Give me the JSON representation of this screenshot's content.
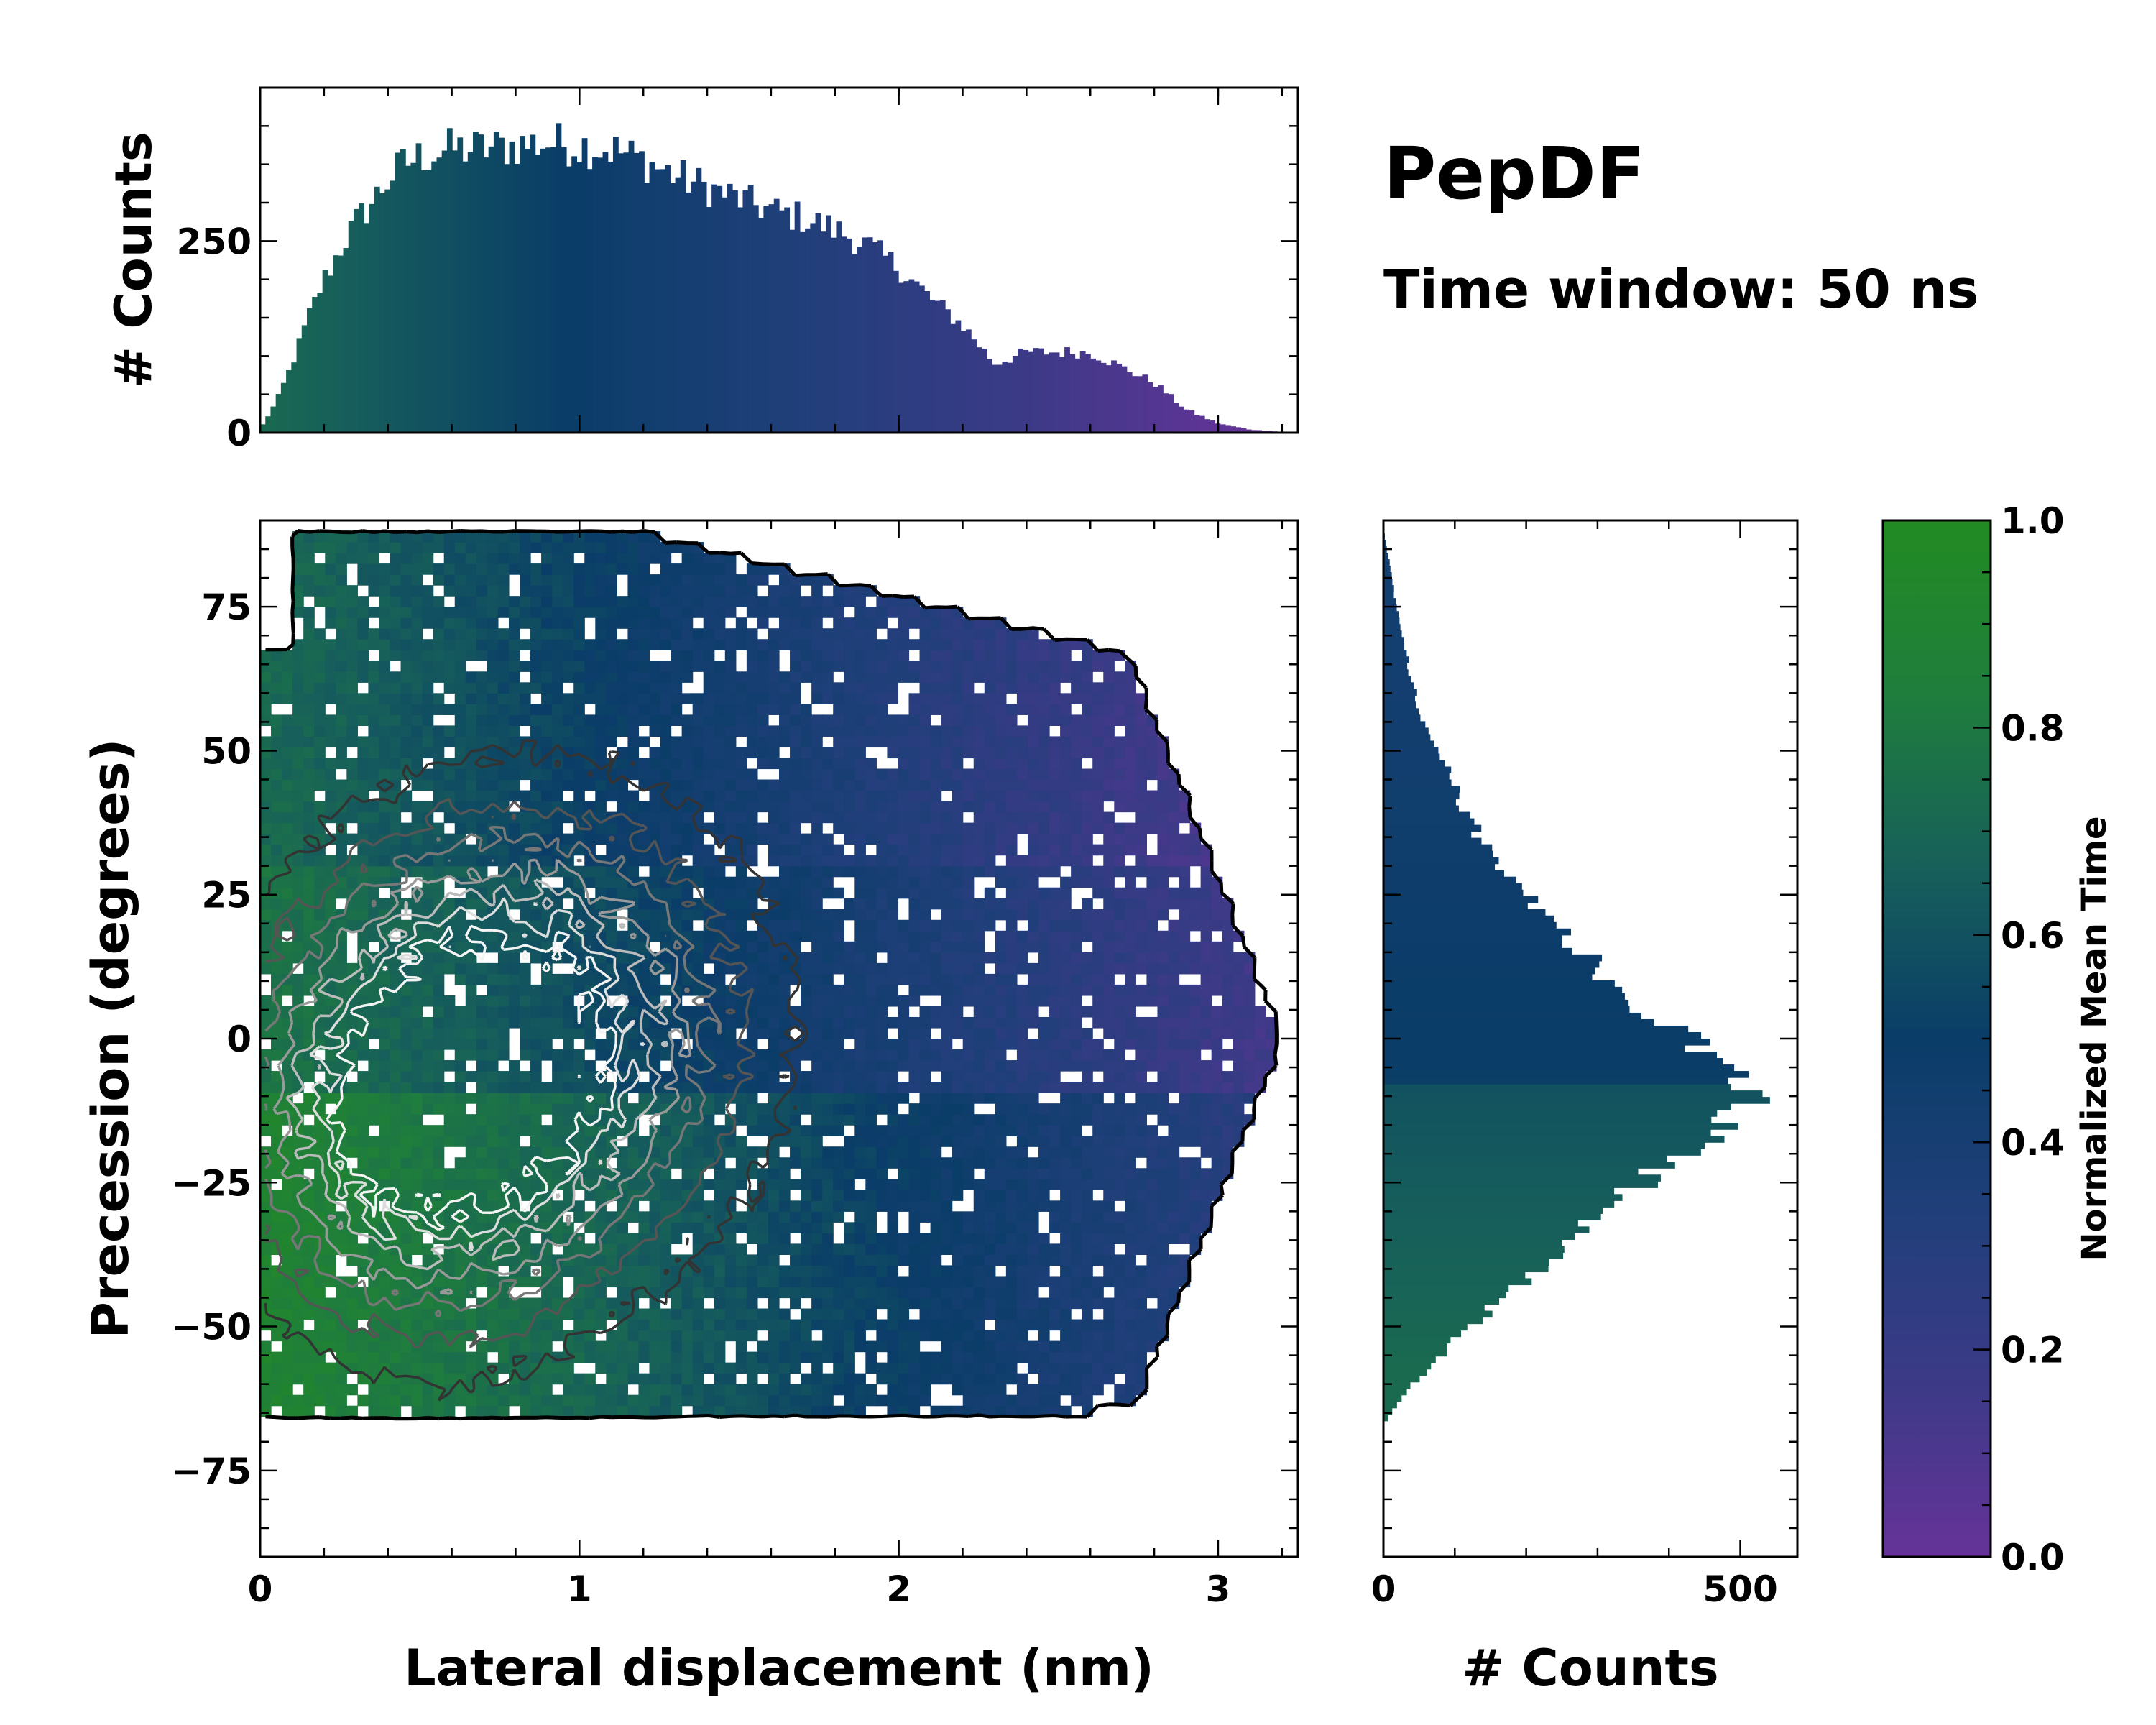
{
  "title": "PepDF",
  "subtitle": "Time window: 50 ns",
  "colors": {
    "cmap": [
      "#663399",
      "#3c3a87",
      "#203f7a",
      "#0a3d68",
      "#17605a",
      "#1f7e3c",
      "#228b22"
    ],
    "contours": [
      "#111111",
      "#333333",
      "#555555",
      "#777777",
      "#999999",
      "#bbbbbb",
      "#dddddd",
      "#f4f4f4"
    ],
    "outline": "#000000"
  },
  "chart_data": [
    {
      "id": "top-hist",
      "type": "bar",
      "title": "",
      "xlabel": "",
      "ylabel": "# Counts",
      "xlim": [
        0,
        3.25
      ],
      "ylim": [
        0,
        450
      ],
      "yticks": [
        0,
        250
      ],
      "bins": 200,
      "envelope": {
        "x": [
          0.0,
          0.05,
          0.1,
          0.15,
          0.2,
          0.25,
          0.3,
          0.35,
          0.4,
          0.45,
          0.5,
          0.6,
          0.7,
          0.8,
          0.9,
          1.0,
          1.1,
          1.2,
          1.3,
          1.4,
          1.5,
          1.6,
          1.7,
          1.8,
          1.9,
          2.0,
          2.1,
          2.2,
          2.3,
          2.4,
          2.5,
          2.6,
          2.7,
          2.8,
          2.9,
          3.0,
          3.1,
          3.2
        ],
        "y": [
          5,
          40,
          90,
          150,
          200,
          240,
          275,
          300,
          330,
          350,
          360,
          370,
          370,
          375,
          378,
          375,
          370,
          355,
          335,
          320,
          305,
          290,
          280,
          265,
          245,
          215,
          175,
          140,
          90,
          105,
          105,
          105,
          85,
          65,
          30,
          12,
          4,
          1
        ]
      },
      "color_by": "normalized_mean_time"
    },
    {
      "id": "main-2d-hist",
      "type": "heatmap",
      "title": "",
      "xlabel": "Lateral displacement (nm)",
      "ylabel": "Precession (degrees)",
      "xlim": [
        0,
        3.25
      ],
      "ylim": [
        -90,
        90
      ],
      "xticks": [
        0,
        1,
        2,
        3
      ],
      "yticks": [
        -75,
        -50,
        -25,
        0,
        25,
        50,
        75
      ],
      "ytick_labels": [
        "−75",
        "−50",
        "−25",
        "0",
        "25",
        "50",
        "75"
      ],
      "grid": false,
      "overlay": "contour lines of bin counts (black outermost → white densest)",
      "density_centers": [
        {
          "x": 0.85,
          "y": 2,
          "sx": 0.42,
          "sy": 24
        },
        {
          "x": 0.5,
          "y": -15,
          "sx": 0.35,
          "sy": 22
        }
      ]
    },
    {
      "id": "right-hist",
      "type": "bar",
      "orientation": "horizontal",
      "title": "",
      "xlabel": "# Counts",
      "ylabel": "",
      "xlim": [
        0,
        580
      ],
      "ylim": [
        -90,
        90
      ],
      "xticks": [
        0,
        500
      ],
      "bins": 160,
      "envelope": {
        "y": [
          -66,
          -60,
          -50,
          -45,
          -40,
          -35,
          -30,
          -25,
          -20,
          -15,
          -12,
          -8,
          -5,
          0,
          5,
          10,
          15,
          20,
          25,
          30,
          35,
          40,
          45,
          50,
          55,
          60,
          65,
          70,
          75,
          80,
          85,
          88
        ],
        "x": [
          5,
          40,
          120,
          170,
          215,
          255,
          300,
          365,
          420,
          470,
          510,
          505,
          470,
          430,
          370,
          320,
          280,
          240,
          200,
          165,
          135,
          110,
          95,
          75,
          55,
          45,
          35,
          25,
          18,
          12,
          5,
          1
        ]
      },
      "color_by": "normalized_mean_time"
    },
    {
      "id": "colorbar",
      "type": "colorbar",
      "label": "Normalized Mean Time",
      "range": [
        0.0,
        1.0
      ],
      "ticks": [
        "0.0",
        "0.2",
        "0.4",
        "0.6",
        "0.8",
        "1.0"
      ]
    }
  ]
}
